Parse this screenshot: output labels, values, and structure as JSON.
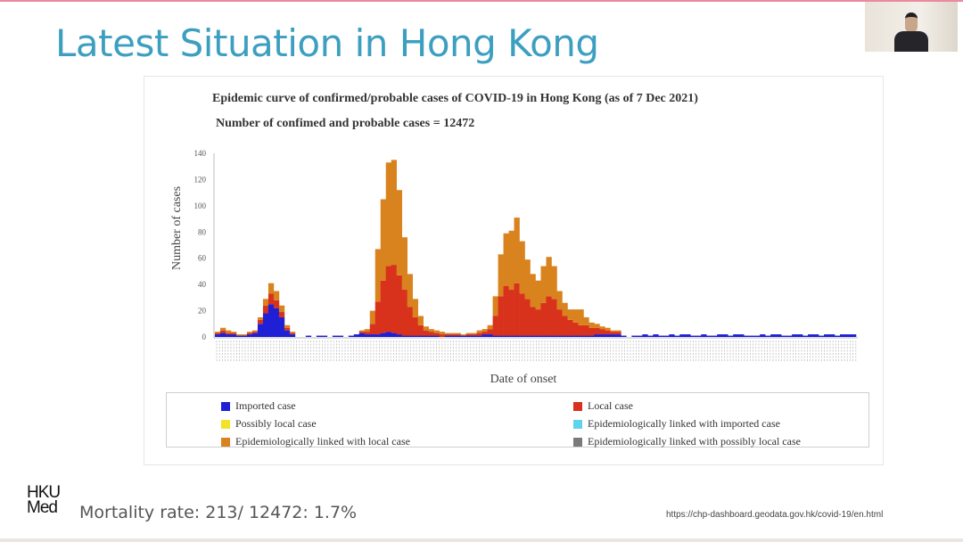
{
  "slide": {
    "title": "Latest Situation in Hong Kong",
    "mortality": "Mortality rate: 213/ 12472: 1.7%",
    "source_url": "https://chp-dashboard.geodata.gov.hk/covid-19/en.html",
    "logo_line1": "HKU",
    "logo_line2": "Med"
  },
  "chart_data": {
    "type": "bar",
    "stacked": true,
    "title": "Epidemic curve of confirmed/probable cases of COVID-19 in Hong Kong (as of 7 Dec 2021)",
    "subtitle": "Number of confimed and probable cases = 12472",
    "xlabel": "Date of onset",
    "ylabel": "Number of cases",
    "ylim": [
      0,
      140
    ],
    "yticks": [
      "0",
      "20",
      "40",
      "60",
      "80",
      "100",
      "120",
      "140"
    ],
    "grid": false,
    "legend_placement": "bottom",
    "legend": [
      {
        "name": "Imported case",
        "color": "#1f1fd6"
      },
      {
        "name": "Local case",
        "color": "#d8321c"
      },
      {
        "name": "Possibly local case",
        "color": "#f2e22a"
      },
      {
        "name": "Epidemiologically linked with imported case",
        "color": "#5fd3ee"
      },
      {
        "name": "Epidemiologically linked with local case",
        "color": "#d9831f"
      },
      {
        "name": "Epidemiologically linked with possibly local case",
        "color": "#7a7a7a"
      }
    ],
    "series": [
      {
        "name": "Imported case",
        "color": "#1f1fd6",
        "values": [
          2,
          3,
          2,
          2,
          1,
          1,
          2,
          3,
          10,
          18,
          25,
          22,
          15,
          5,
          2,
          0,
          0,
          1,
          0,
          1,
          1,
          0,
          1,
          1,
          0,
          1,
          2,
          3,
          2,
          2,
          2,
          3,
          4,
          3,
          2,
          1,
          1,
          1,
          1,
          1,
          1,
          1,
          0,
          1,
          1,
          1,
          1,
          1,
          1,
          1,
          2,
          2,
          1,
          1,
          1,
          1,
          1,
          1,
          1,
          1,
          1,
          1,
          1,
          1,
          1,
          1,
          1,
          1,
          1,
          1,
          1,
          2,
          2,
          2,
          2,
          2,
          1,
          0,
          1,
          1,
          2,
          1,
          2,
          1,
          1,
          2,
          1,
          2,
          2,
          1,
          1,
          2,
          1,
          1,
          2,
          2,
          1,
          2,
          2,
          1,
          1,
          1,
          2,
          1,
          2,
          2,
          1,
          1,
          2,
          2,
          1,
          2,
          2,
          1,
          2,
          2,
          1,
          2,
          2,
          2
        ]
      },
      {
        "name": "Local case",
        "color": "#d8321c",
        "values": [
          1,
          2,
          1,
          1,
          0,
          0,
          1,
          1,
          3,
          6,
          8,
          6,
          4,
          2,
          1,
          0,
          0,
          0,
          0,
          0,
          0,
          0,
          0,
          0,
          0,
          0,
          0,
          1,
          2,
          8,
          25,
          40,
          50,
          52,
          45,
          35,
          22,
          14,
          8,
          4,
          3,
          2,
          2,
          1,
          1,
          1,
          0,
          1,
          1,
          2,
          2,
          4,
          15,
          30,
          38,
          35,
          40,
          32,
          28,
          22,
          20,
          25,
          30,
          28,
          20,
          15,
          12,
          10,
          8,
          8,
          6,
          5,
          4,
          3,
          2,
          2,
          0,
          0,
          0,
          0,
          0,
          0,
          0,
          0,
          0,
          0,
          0,
          0,
          0,
          0,
          0,
          0,
          0,
          0,
          0,
          0,
          0,
          0,
          0,
          0,
          0,
          0,
          0,
          0,
          0,
          0,
          0,
          0,
          0,
          0,
          0,
          0,
          0,
          0,
          0,
          0,
          0,
          0,
          0,
          0
        ]
      },
      {
        "name": "Epidemiologically linked with local case",
        "color": "#d9831f",
        "values": [
          1,
          2,
          2,
          1,
          1,
          1,
          1,
          1,
          2,
          5,
          8,
          7,
          5,
          2,
          1,
          0,
          0,
          0,
          0,
          0,
          0,
          0,
          0,
          0,
          0,
          0,
          0,
          1,
          2,
          10,
          40,
          62,
          79,
          80,
          65,
          40,
          25,
          14,
          7,
          3,
          2,
          2,
          2,
          1,
          1,
          1,
          1,
          1,
          1,
          2,
          2,
          3,
          15,
          32,
          40,
          45,
          50,
          40,
          30,
          25,
          22,
          28,
          30,
          25,
          14,
          10,
          8,
          10,
          12,
          6,
          4,
          3,
          2,
          2,
          1,
          1,
          0,
          0,
          0,
          0,
          0,
          0,
          0,
          0,
          0,
          0,
          0,
          0,
          0,
          0,
          0,
          0,
          0,
          0,
          0,
          0,
          0,
          0,
          0,
          0,
          0,
          0,
          0,
          0,
          0,
          0,
          0,
          0,
          0,
          0,
          0,
          0,
          0,
          0,
          0,
          0,
          0,
          0,
          0,
          0
        ]
      }
    ]
  }
}
